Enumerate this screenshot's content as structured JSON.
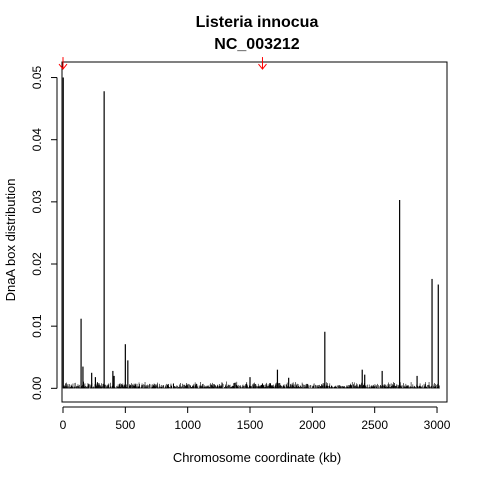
{
  "chart_data": {
    "type": "bar",
    "title": "Listeria innocua",
    "subtitle": "NC_003212",
    "xlabel": "Chromosome coordinate (kb)",
    "ylabel": "DnaA box distribution",
    "xlim": [
      -8,
      3080
    ],
    "ylim": [
      -0.0022,
      0.0525
    ],
    "x_ticks": [
      0,
      500,
      1000,
      1500,
      2000,
      2500,
      3000
    ],
    "x_tick_labels": [
      "0",
      "500",
      "1000",
      "1500",
      "2000",
      "2500",
      "3000"
    ],
    "y_ticks": [
      0,
      0.01,
      0.02,
      0.03,
      0.04,
      0.05
    ],
    "y_tick_labels": [
      "0.00",
      "0.01",
      "0.02",
      "0.03",
      "0.04",
      "0.05"
    ],
    "grid": false,
    "bar_color": "#000000",
    "marker_color": "#ff0000",
    "markers": [
      {
        "x": 0
      },
      {
        "x": 1600
      }
    ],
    "x": [
      2,
      145,
      160,
      230,
      260,
      330,
      400,
      410,
      500,
      520,
      1500,
      1720,
      1810,
      2100,
      2400,
      2420,
      2560,
      2700,
      2840,
      2960,
      3010
    ],
    "values": [
      0.05,
      0.0112,
      0.0035,
      0.0025,
      0.0018,
      0.0478,
      0.0028,
      0.002,
      0.0071,
      0.0045,
      0.0018,
      0.003,
      0.0017,
      0.0091,
      0.003,
      0.0022,
      0.0028,
      0.0303,
      0.002,
      0.0176,
      0.0167
    ]
  }
}
